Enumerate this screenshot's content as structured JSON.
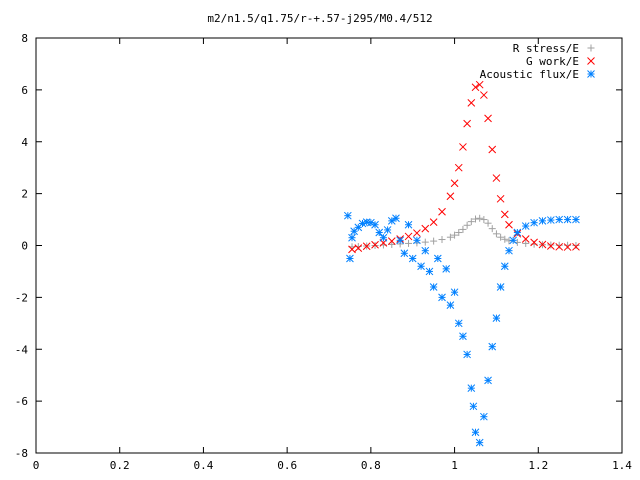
{
  "chart_data": {
    "type": "scatter",
    "title": "m2/n1.5/q1.75/r-+.57-j295/M0.4/512",
    "xlabel": "",
    "ylabel": "",
    "xlim": [
      0,
      1.4
    ],
    "ylim": [
      -8,
      8
    ],
    "x_ticks": [
      0,
      0.2,
      0.4,
      0.6,
      0.8,
      1,
      1.2,
      1.4
    ],
    "x_tick_labels": [
      "0",
      "0.2",
      "0.4",
      "0.6",
      "0.8",
      "1",
      "1.2",
      "1.4"
    ],
    "y_ticks": [
      -8,
      -6,
      -4,
      -2,
      0,
      2,
      4,
      6,
      8
    ],
    "y_tick_labels": [
      "-8",
      "-6",
      "-4",
      "-2",
      "0",
      "2",
      "4",
      "6",
      "8"
    ],
    "grid": false,
    "legend_position": "top-right",
    "series": [
      {
        "name": "R stress/E",
        "marker": "+",
        "color": "#a0a0a0",
        "points": [
          [
            0.755,
            -0.05
          ],
          [
            0.77,
            -0.04
          ],
          [
            0.79,
            -0.02
          ],
          [
            0.81,
            0.0
          ],
          [
            0.83,
            0.02
          ],
          [
            0.85,
            0.04
          ],
          [
            0.87,
            0.06
          ],
          [
            0.89,
            0.08
          ],
          [
            0.91,
            0.1
          ],
          [
            0.93,
            0.13
          ],
          [
            0.95,
            0.17
          ],
          [
            0.97,
            0.23
          ],
          [
            0.99,
            0.32
          ],
          [
            1.0,
            0.4
          ],
          [
            1.01,
            0.5
          ],
          [
            1.02,
            0.62
          ],
          [
            1.03,
            0.78
          ],
          [
            1.04,
            0.92
          ],
          [
            1.05,
            1.02
          ],
          [
            1.06,
            1.05
          ],
          [
            1.07,
            1.0
          ],
          [
            1.08,
            0.86
          ],
          [
            1.09,
            0.65
          ],
          [
            1.1,
            0.45
          ],
          [
            1.11,
            0.32
          ],
          [
            1.12,
            0.24
          ],
          [
            1.13,
            0.18
          ],
          [
            1.15,
            0.12
          ],
          [
            1.17,
            0.08
          ],
          [
            1.19,
            0.05
          ],
          [
            1.21,
            0.03
          ],
          [
            1.23,
            0.02
          ],
          [
            1.25,
            0.01
          ],
          [
            1.27,
            0.01
          ],
          [
            1.29,
            0.0
          ]
        ]
      },
      {
        "name": "G work/E",
        "marker": "x",
        "color": "#ff0000",
        "points": [
          [
            0.755,
            -0.15
          ],
          [
            0.77,
            -0.1
          ],
          [
            0.79,
            -0.03
          ],
          [
            0.81,
            0.03
          ],
          [
            0.83,
            0.1
          ],
          [
            0.85,
            0.17
          ],
          [
            0.87,
            0.25
          ],
          [
            0.89,
            0.35
          ],
          [
            0.91,
            0.48
          ],
          [
            0.93,
            0.65
          ],
          [
            0.95,
            0.9
          ],
          [
            0.97,
            1.3
          ],
          [
            0.99,
            1.9
          ],
          [
            1.0,
            2.4
          ],
          [
            1.01,
            3.0
          ],
          [
            1.02,
            3.8
          ],
          [
            1.03,
            4.7
          ],
          [
            1.04,
            5.5
          ],
          [
            1.05,
            6.1
          ],
          [
            1.06,
            6.2
          ],
          [
            1.07,
            5.8
          ],
          [
            1.08,
            4.9
          ],
          [
            1.09,
            3.7
          ],
          [
            1.1,
            2.6
          ],
          [
            1.11,
            1.8
          ],
          [
            1.12,
            1.2
          ],
          [
            1.13,
            0.8
          ],
          [
            1.15,
            0.45
          ],
          [
            1.17,
            0.25
          ],
          [
            1.19,
            0.12
          ],
          [
            1.21,
            0.04
          ],
          [
            1.23,
            -0.02
          ],
          [
            1.25,
            -0.05
          ],
          [
            1.27,
            -0.06
          ],
          [
            1.29,
            -0.05
          ]
        ]
      },
      {
        "name": "Acoustic flux/E",
        "marker": "*",
        "color": "#0080ff",
        "points": [
          [
            0.745,
            1.15
          ],
          [
            0.75,
            -0.5
          ],
          [
            0.755,
            0.3
          ],
          [
            0.76,
            0.55
          ],
          [
            0.77,
            0.7
          ],
          [
            0.78,
            0.85
          ],
          [
            0.79,
            0.9
          ],
          [
            0.8,
            0.88
          ],
          [
            0.81,
            0.8
          ],
          [
            0.82,
            0.5
          ],
          [
            0.83,
            0.3
          ],
          [
            0.84,
            0.6
          ],
          [
            0.85,
            0.95
          ],
          [
            0.86,
            1.05
          ],
          [
            0.87,
            0.2
          ],
          [
            0.88,
            -0.3
          ],
          [
            0.89,
            0.8
          ],
          [
            0.9,
            -0.5
          ],
          [
            0.91,
            0.2
          ],
          [
            0.92,
            -0.8
          ],
          [
            0.93,
            -0.2
          ],
          [
            0.94,
            -1.0
          ],
          [
            0.95,
            -1.6
          ],
          [
            0.96,
            -0.5
          ],
          [
            0.97,
            -2.0
          ],
          [
            0.98,
            -0.9
          ],
          [
            0.99,
            -2.3
          ],
          [
            1.0,
            -1.8
          ],
          [
            1.01,
            -3.0
          ],
          [
            1.02,
            -3.5
          ],
          [
            1.03,
            -4.2
          ],
          [
            1.04,
            -5.5
          ],
          [
            1.045,
            -6.2
          ],
          [
            1.05,
            -7.2
          ],
          [
            1.06,
            -7.6
          ],
          [
            1.07,
            -6.6
          ],
          [
            1.08,
            -5.2
          ],
          [
            1.09,
            -3.9
          ],
          [
            1.1,
            -2.8
          ],
          [
            1.11,
            -1.6
          ],
          [
            1.12,
            -0.8
          ],
          [
            1.13,
            -0.2
          ],
          [
            1.14,
            0.2
          ],
          [
            1.15,
            0.5
          ],
          [
            1.17,
            0.75
          ],
          [
            1.19,
            0.88
          ],
          [
            1.21,
            0.95
          ],
          [
            1.23,
            0.98
          ],
          [
            1.25,
            1.0
          ],
          [
            1.27,
            1.0
          ],
          [
            1.29,
            1.0
          ]
        ]
      }
    ]
  }
}
